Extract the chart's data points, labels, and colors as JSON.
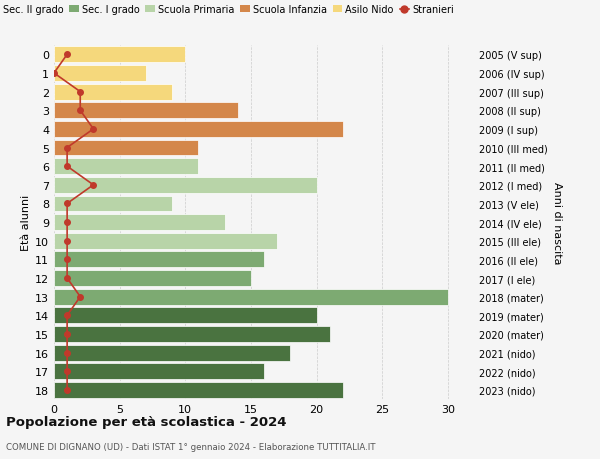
{
  "ages": [
    18,
    17,
    16,
    15,
    14,
    13,
    12,
    11,
    10,
    9,
    8,
    7,
    6,
    5,
    4,
    3,
    2,
    1,
    0
  ],
  "right_labels": [
    "2005 (V sup)",
    "2006 (IV sup)",
    "2007 (III sup)",
    "2008 (II sup)",
    "2009 (I sup)",
    "2010 (III med)",
    "2011 (II med)",
    "2012 (I med)",
    "2013 (V ele)",
    "2014 (IV ele)",
    "2015 (III ele)",
    "2016 (II ele)",
    "2017 (I ele)",
    "2018 (mater)",
    "2019 (mater)",
    "2020 (mater)",
    "2021 (nido)",
    "2022 (nido)",
    "2023 (nido)"
  ],
  "bar_values": [
    22,
    16,
    18,
    21,
    20,
    30,
    15,
    16,
    17,
    13,
    9,
    20,
    11,
    11,
    22,
    14,
    9,
    7,
    10
  ],
  "stranieri_values": [
    1,
    1,
    1,
    1,
    1,
    2,
    1,
    1,
    1,
    1,
    1,
    3,
    1,
    1,
    3,
    2,
    2,
    0,
    1
  ],
  "bar_colors": [
    "#4a7340",
    "#4a7340",
    "#4a7340",
    "#4a7340",
    "#4a7340",
    "#7daa72",
    "#7daa72",
    "#7daa72",
    "#b8d4a8",
    "#b8d4a8",
    "#b8d4a8",
    "#b8d4a8",
    "#b8d4a8",
    "#d4874a",
    "#d4874a",
    "#d4874a",
    "#f5d87c",
    "#f5d87c",
    "#f5d87c"
  ],
  "legend_colors": [
    "#4a7340",
    "#7daa72",
    "#b8d4a8",
    "#d4874a",
    "#f5d87c",
    "#c0392b"
  ],
  "legend_labels": [
    "Sec. II grado",
    "Sec. I grado",
    "Scuola Primaria",
    "Scuola Infanzia",
    "Asilo Nido",
    "Stranieri"
  ],
  "title": "Popolazione per età scolastica - 2024",
  "subtitle": "COMUNE DI DIGNANO (UD) - Dati ISTAT 1° gennaio 2024 - Elaborazione TUTTITALIA.IT",
  "ylabel_left": "Età alunni",
  "ylabel_right": "Anni di nascita",
  "xlim": [
    0,
    32
  ],
  "stranieri_color": "#c0392b",
  "bg_color": "#f5f5f5"
}
